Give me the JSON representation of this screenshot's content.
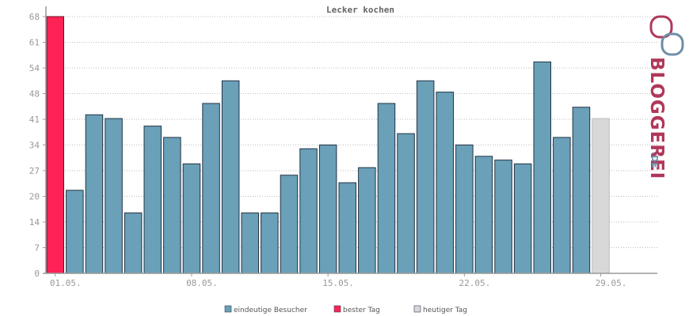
{
  "chart_data": {
    "type": "bar",
    "title": "Lecker kochen",
    "y_ticks": [
      "0",
      "7",
      "14",
      "20",
      "27",
      "34",
      "41",
      "48",
      "54",
      "61",
      "68"
    ],
    "ylim": [
      0,
      68
    ],
    "x_ticks": [
      "01.05.",
      "08.05.",
      "15.05.",
      "22.05.",
      "29.05."
    ],
    "grid": true,
    "legend_position": "bottom",
    "values": [
      68,
      22,
      42,
      41,
      16,
      39,
      36,
      29,
      45,
      51,
      16,
      16,
      26,
      33,
      34,
      24,
      28,
      45,
      37,
      51,
      48,
      34,
      31,
      30,
      29,
      56,
      36,
      44,
      41
    ],
    "best_day_index": 0,
    "today_index": 28,
    "series": [
      {
        "name": "eindeutige Besucher",
        "color": "#6aa0b8"
      },
      {
        "name": "bester Tag",
        "color": "#ff2255"
      },
      {
        "name": "heutiger Tag",
        "color": "#d8d8d8"
      }
    ]
  },
  "brand": {
    "name": "BLOGGEREI",
    "suffix": ".DE",
    "accent": "#b0385a",
    "secondary": "#6d8ea8"
  }
}
